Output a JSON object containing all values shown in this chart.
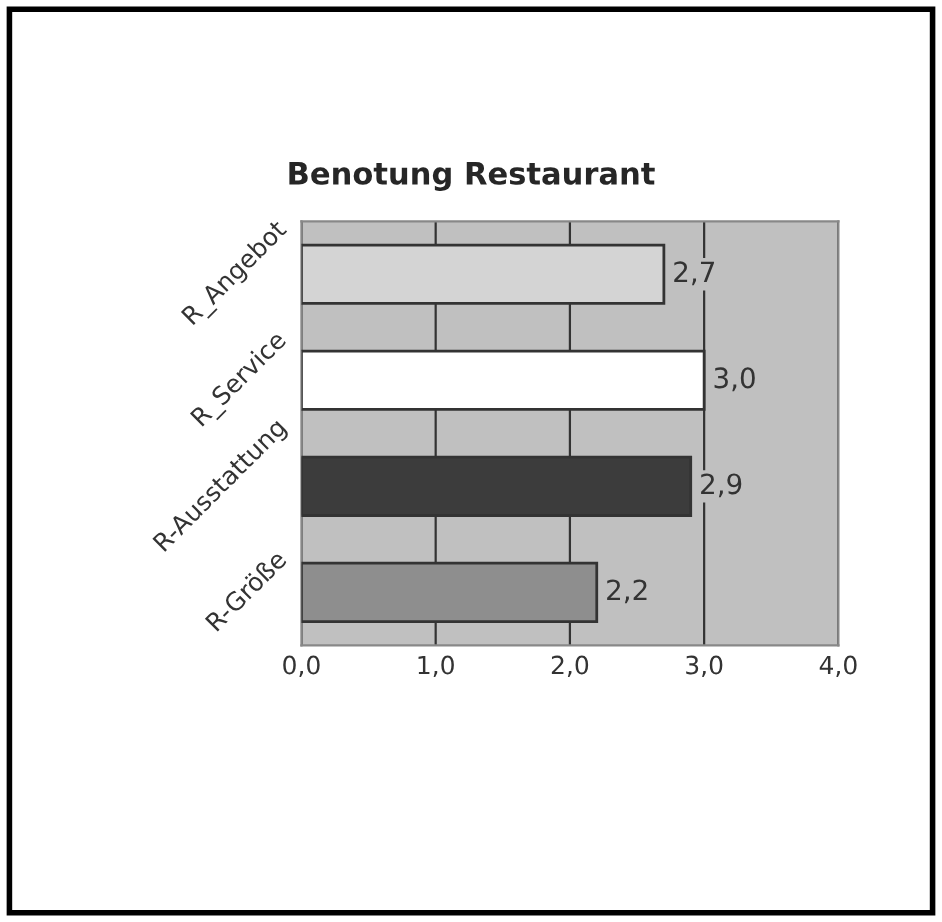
{
  "chart_data": {
    "type": "bar",
    "orientation": "horizontal",
    "title": "Benotung Restaurant",
    "categories": [
      "R_Angebot",
      "R_Service",
      "R-Ausstattung",
      "R-Größe"
    ],
    "values": [
      2.7,
      3.0,
      2.9,
      2.2
    ],
    "colors": [
      "#d4d4d4",
      "#ffffff",
      "#3c3c3c",
      "#8e8e8e"
    ],
    "value_labels": [
      "2,7",
      "3,0",
      "2,9",
      "2,2"
    ],
    "xlim": [
      0,
      4
    ],
    "xticks": [
      {
        "value": 0,
        "label": "0,0"
      },
      {
        "value": 1,
        "label": "1,0"
      },
      {
        "value": 2,
        "label": "2,0"
      },
      {
        "value": 3,
        "label": "3,0"
      },
      {
        "value": 4,
        "label": "4,0"
      }
    ],
    "grid": "x",
    "legend": false
  }
}
